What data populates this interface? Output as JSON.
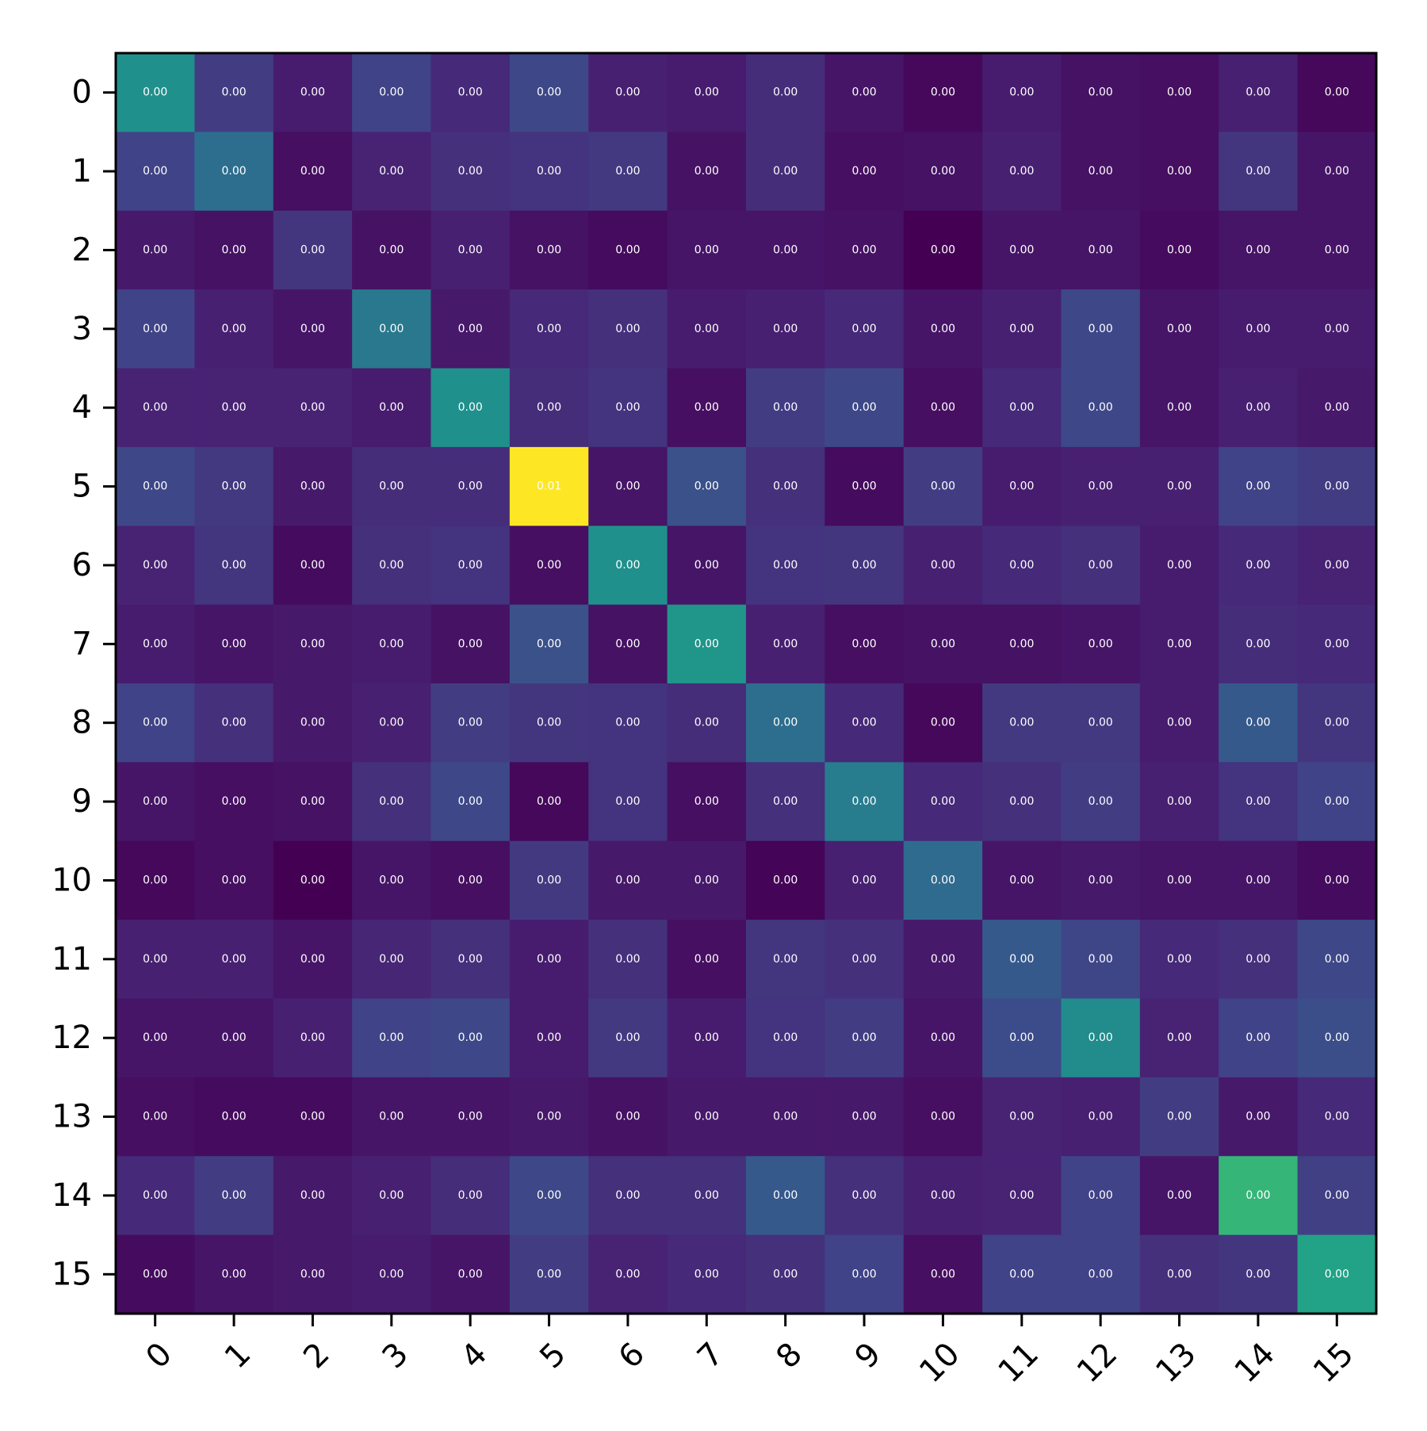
{
  "chart_data": {
    "type": "heatmap",
    "colormap": "viridis",
    "rows": [
      "0",
      "1",
      "2",
      "3",
      "4",
      "5",
      "6",
      "7",
      "8",
      "9",
      "10",
      "11",
      "12",
      "13",
      "14",
      "15"
    ],
    "cols": [
      "0",
      "1",
      "2",
      "3",
      "4",
      "5",
      "6",
      "7",
      "8",
      "9",
      "10",
      "11",
      "12",
      "13",
      "14",
      "15"
    ],
    "x_tick_rotation_deg": 45,
    "intensity": [
      [
        0.5,
        0.18,
        0.08,
        0.2,
        0.12,
        0.22,
        0.09,
        0.08,
        0.13,
        0.06,
        0.02,
        0.08,
        0.05,
        0.04,
        0.09,
        0.02
      ],
      [
        0.2,
        0.36,
        0.04,
        0.1,
        0.14,
        0.15,
        0.17,
        0.05,
        0.13,
        0.04,
        0.05,
        0.09,
        0.05,
        0.04,
        0.16,
        0.06
      ],
      [
        0.07,
        0.05,
        0.16,
        0.05,
        0.09,
        0.05,
        0.03,
        0.06,
        0.06,
        0.05,
        0.0,
        0.06,
        0.06,
        0.03,
        0.06,
        0.06
      ],
      [
        0.2,
        0.09,
        0.06,
        0.4,
        0.07,
        0.12,
        0.14,
        0.08,
        0.09,
        0.12,
        0.06,
        0.09,
        0.22,
        0.06,
        0.08,
        0.08
      ],
      [
        0.1,
        0.1,
        0.1,
        0.08,
        0.5,
        0.13,
        0.15,
        0.04,
        0.18,
        0.22,
        0.04,
        0.12,
        0.22,
        0.06,
        0.09,
        0.07
      ],
      [
        0.22,
        0.17,
        0.07,
        0.13,
        0.13,
        1.0,
        0.06,
        0.25,
        0.14,
        0.03,
        0.18,
        0.08,
        0.09,
        0.09,
        0.2,
        0.18
      ],
      [
        0.1,
        0.16,
        0.03,
        0.14,
        0.15,
        0.04,
        0.5,
        0.06,
        0.15,
        0.16,
        0.09,
        0.12,
        0.14,
        0.08,
        0.12,
        0.1
      ],
      [
        0.08,
        0.06,
        0.07,
        0.08,
        0.05,
        0.25,
        0.05,
        0.52,
        0.09,
        0.04,
        0.05,
        0.05,
        0.06,
        0.08,
        0.13,
        0.12
      ],
      [
        0.2,
        0.14,
        0.07,
        0.09,
        0.18,
        0.16,
        0.15,
        0.13,
        0.36,
        0.12,
        0.02,
        0.17,
        0.17,
        0.08,
        0.28,
        0.16
      ],
      [
        0.06,
        0.04,
        0.05,
        0.14,
        0.22,
        0.02,
        0.15,
        0.04,
        0.14,
        0.42,
        0.12,
        0.14,
        0.18,
        0.09,
        0.15,
        0.2
      ],
      [
        0.02,
        0.04,
        0.0,
        0.06,
        0.04,
        0.17,
        0.07,
        0.07,
        0.01,
        0.09,
        0.35,
        0.06,
        0.07,
        0.06,
        0.06,
        0.03
      ],
      [
        0.09,
        0.09,
        0.06,
        0.11,
        0.14,
        0.08,
        0.14,
        0.04,
        0.16,
        0.14,
        0.07,
        0.28,
        0.21,
        0.12,
        0.14,
        0.22
      ],
      [
        0.06,
        0.06,
        0.09,
        0.2,
        0.22,
        0.08,
        0.17,
        0.08,
        0.15,
        0.18,
        0.06,
        0.23,
        0.48,
        0.1,
        0.2,
        0.24
      ],
      [
        0.04,
        0.03,
        0.03,
        0.06,
        0.06,
        0.07,
        0.05,
        0.07,
        0.07,
        0.07,
        0.04,
        0.1,
        0.09,
        0.18,
        0.07,
        0.12
      ],
      [
        0.12,
        0.18,
        0.07,
        0.09,
        0.13,
        0.22,
        0.14,
        0.14,
        0.28,
        0.14,
        0.09,
        0.1,
        0.2,
        0.06,
        0.66,
        0.19
      ],
      [
        0.03,
        0.06,
        0.07,
        0.08,
        0.06,
        0.18,
        0.1,
        0.12,
        0.14,
        0.2,
        0.04,
        0.2,
        0.2,
        0.14,
        0.16,
        0.58
      ]
    ],
    "cell_labels": [
      [
        "0.00",
        "0.00",
        "0.00",
        "0.00",
        "0.00",
        "0.00",
        "0.00",
        "0.00",
        "0.00",
        "0.00",
        "0.00",
        "0.00",
        "0.00",
        "0.00",
        "0.00",
        "0.00"
      ],
      [
        "0.00",
        "0.00",
        "0.00",
        "0.00",
        "0.00",
        "0.00",
        "0.00",
        "0.00",
        "0.00",
        "0.00",
        "0.00",
        "0.00",
        "0.00",
        "0.00",
        "0.00",
        "0.00"
      ],
      [
        "0.00",
        "0.00",
        "0.00",
        "0.00",
        "0.00",
        "0.00",
        "0.00",
        "0.00",
        "0.00",
        "0.00",
        "0.00",
        "0.00",
        "0.00",
        "0.00",
        "0.00",
        "0.00"
      ],
      [
        "0.00",
        "0.00",
        "0.00",
        "0.00",
        "0.00",
        "0.00",
        "0.00",
        "0.00",
        "0.00",
        "0.00",
        "0.00",
        "0.00",
        "0.00",
        "0.00",
        "0.00",
        "0.00"
      ],
      [
        "0.00",
        "0.00",
        "0.00",
        "0.00",
        "0.00",
        "0.00",
        "0.00",
        "0.00",
        "0.00",
        "0.00",
        "0.00",
        "0.00",
        "0.00",
        "0.00",
        "0.00",
        "0.00"
      ],
      [
        "0.00",
        "0.00",
        "0.00",
        "0.00",
        "0.00",
        "0.01",
        "0.00",
        "0.00",
        "0.00",
        "0.00",
        "0.00",
        "0.00",
        "0.00",
        "0.00",
        "0.00",
        "0.00"
      ],
      [
        "0.00",
        "0.00",
        "0.00",
        "0.00",
        "0.00",
        "0.00",
        "0.00",
        "0.00",
        "0.00",
        "0.00",
        "0.00",
        "0.00",
        "0.00",
        "0.00",
        "0.00",
        "0.00"
      ],
      [
        "0.00",
        "0.00",
        "0.00",
        "0.00",
        "0.00",
        "0.00",
        "0.00",
        "0.00",
        "0.00",
        "0.00",
        "0.00",
        "0.00",
        "0.00",
        "0.00",
        "0.00",
        "0.00"
      ],
      [
        "0.00",
        "0.00",
        "0.00",
        "0.00",
        "0.00",
        "0.00",
        "0.00",
        "0.00",
        "0.00",
        "0.00",
        "0.00",
        "0.00",
        "0.00",
        "0.00",
        "0.00",
        "0.00"
      ],
      [
        "0.00",
        "0.00",
        "0.00",
        "0.00",
        "0.00",
        "0.00",
        "0.00",
        "0.00",
        "0.00",
        "0.00",
        "0.00",
        "0.00",
        "0.00",
        "0.00",
        "0.00",
        "0.00"
      ],
      [
        "0.00",
        "0.00",
        "0.00",
        "0.00",
        "0.00",
        "0.00",
        "0.00",
        "0.00",
        "0.00",
        "0.00",
        "0.00",
        "0.00",
        "0.00",
        "0.00",
        "0.00",
        "0.00"
      ],
      [
        "0.00",
        "0.00",
        "0.00",
        "0.00",
        "0.00",
        "0.00",
        "0.00",
        "0.00",
        "0.00",
        "0.00",
        "0.00",
        "0.00",
        "0.00",
        "0.00",
        "0.00",
        "0.00"
      ],
      [
        "0.00",
        "0.00",
        "0.00",
        "0.00",
        "0.00",
        "0.00",
        "0.00",
        "0.00",
        "0.00",
        "0.00",
        "0.00",
        "0.00",
        "0.00",
        "0.00",
        "0.00",
        "0.00"
      ],
      [
        "0.00",
        "0.00",
        "0.00",
        "0.00",
        "0.00",
        "0.00",
        "0.00",
        "0.00",
        "0.00",
        "0.00",
        "0.00",
        "0.00",
        "0.00",
        "0.00",
        "0.00",
        "0.00"
      ],
      [
        "0.00",
        "0.00",
        "0.00",
        "0.00",
        "0.00",
        "0.00",
        "0.00",
        "0.00",
        "0.00",
        "0.00",
        "0.00",
        "0.00",
        "0.00",
        "0.00",
        "0.00",
        "0.00"
      ],
      [
        "0.00",
        "0.00",
        "0.00",
        "0.00",
        "0.00",
        "0.00",
        "0.00",
        "0.00",
        "0.00",
        "0.00",
        "0.00",
        "0.00",
        "0.00",
        "0.00",
        "0.00",
        "0.00"
      ]
    ],
    "title": "",
    "xlabel": "",
    "ylabel": "",
    "grid": false,
    "colorbar": false,
    "colors": {
      "cell_text": "#ffffff",
      "axis": "#000000",
      "background": "#ffffff"
    }
  }
}
